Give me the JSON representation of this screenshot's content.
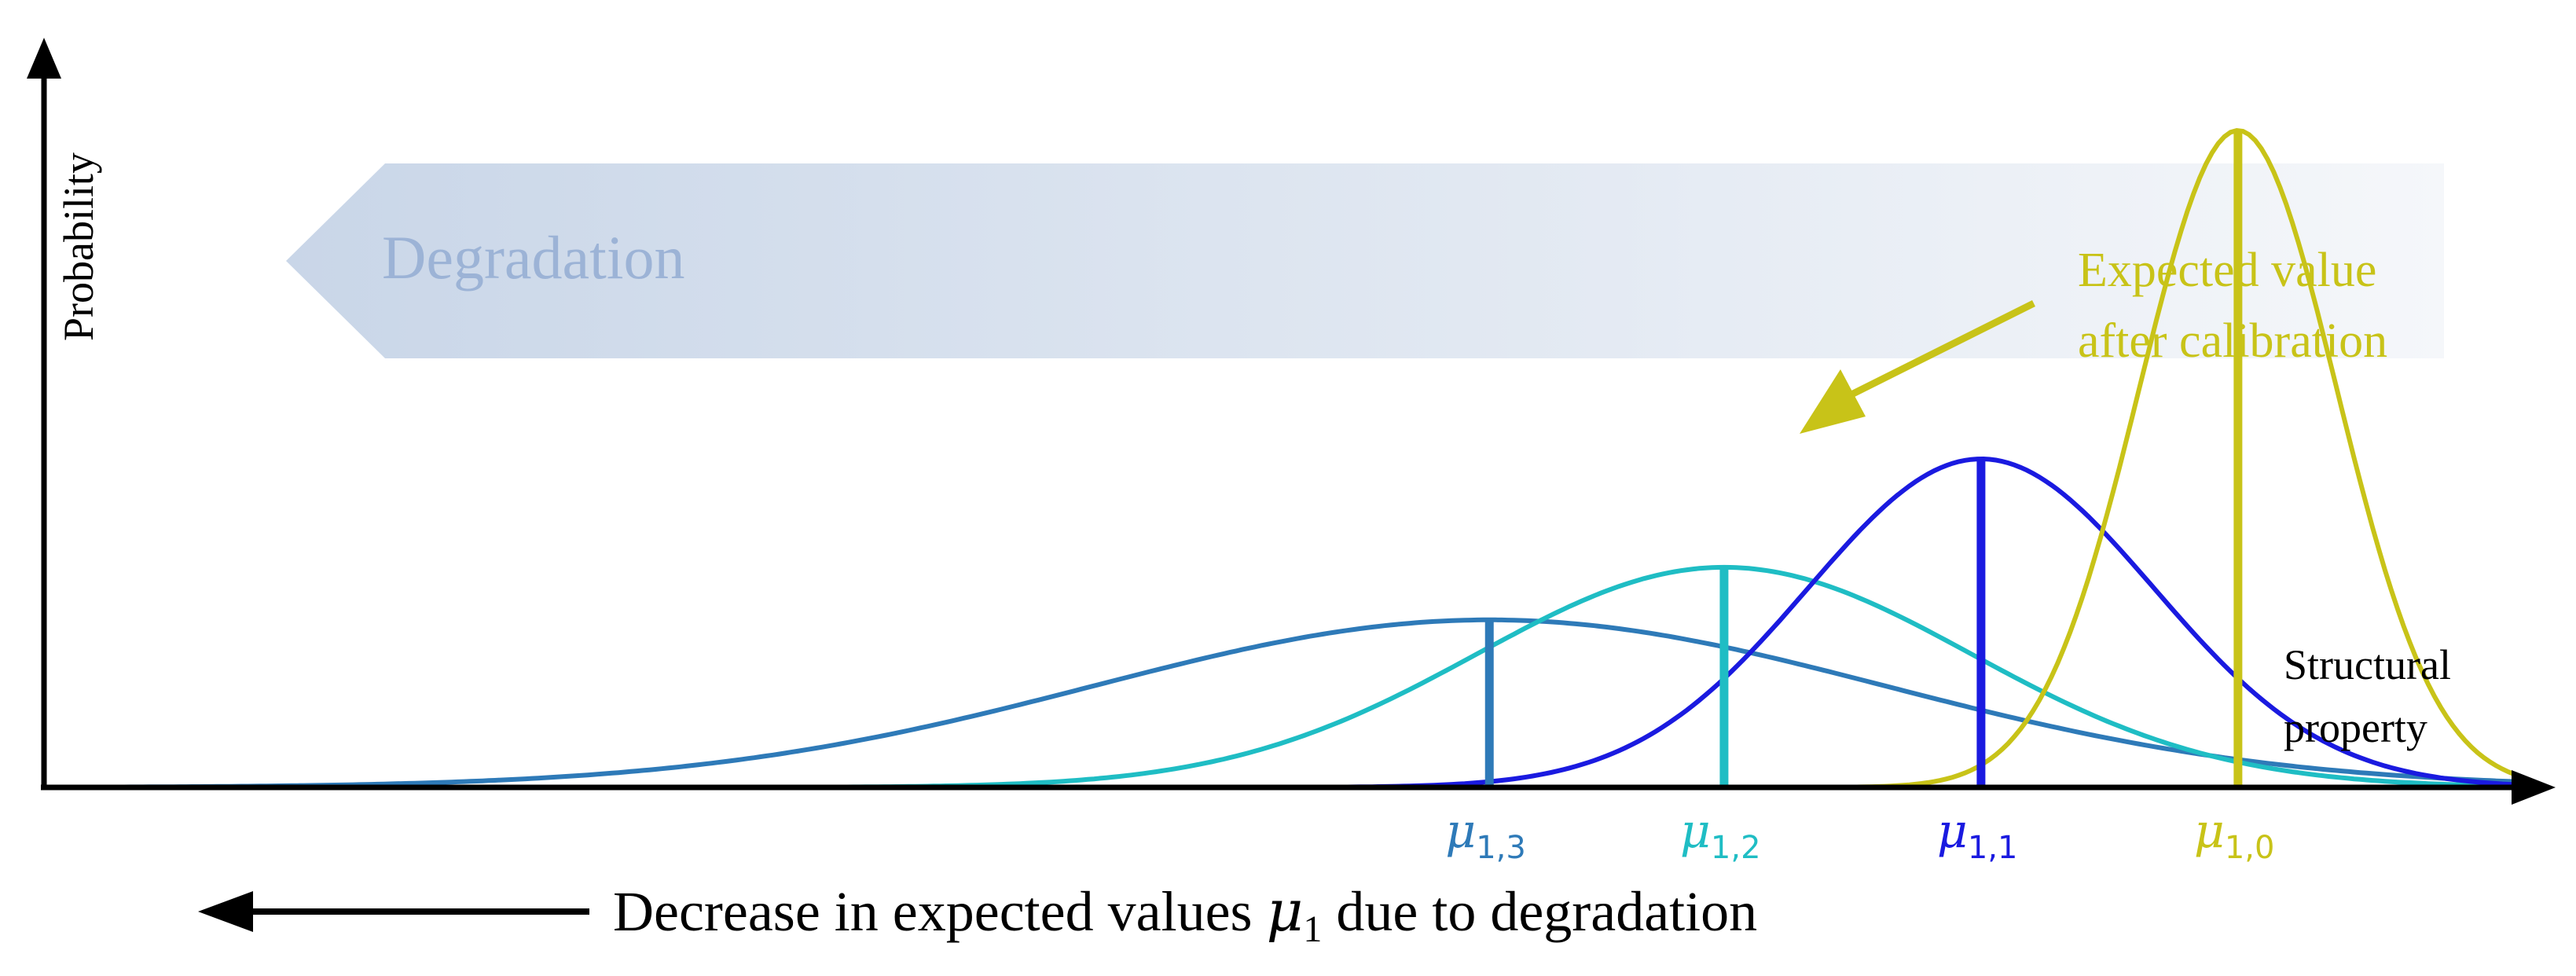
{
  "axes": {
    "y_label": "Probability",
    "x_label_line1": "Structural",
    "x_label_line2": "property"
  },
  "banner": {
    "label": "Degradation",
    "color_start": "#c9d6e8",
    "color_end": "#f5f7fa",
    "text_color": "#9cb3d6"
  },
  "annotation": {
    "line1": "Expected value",
    "line2": "after calibration",
    "color": "#c8c318"
  },
  "bottom_caption": {
    "prefix": "Decrease in expected values ",
    "symbol": "μ",
    "subscript": "1",
    "suffix": " due to degradation"
  },
  "distributions": [
    {
      "id": "mu13",
      "symbol": "μ",
      "sub": "1,3",
      "color": "#2e7ab8",
      "mean": 0.585,
      "sd": 0.16,
      "peak": 0.255
    },
    {
      "id": "mu12",
      "symbol": "μ",
      "sub": "1,2",
      "color": "#1fbdc4",
      "mean": 0.68,
      "sd": 0.1,
      "peak": 0.335
    },
    {
      "id": "mu11",
      "symbol": "μ",
      "sub": "1,1",
      "color": "#1a1ae0",
      "mean": 0.784,
      "sd": 0.07,
      "peak": 0.5
    },
    {
      "id": "mu10",
      "symbol": "μ",
      "sub": "1,0",
      "color": "#c8c318",
      "mean": 0.888,
      "sd": 0.04,
      "peak": 1.0
    }
  ]
}
